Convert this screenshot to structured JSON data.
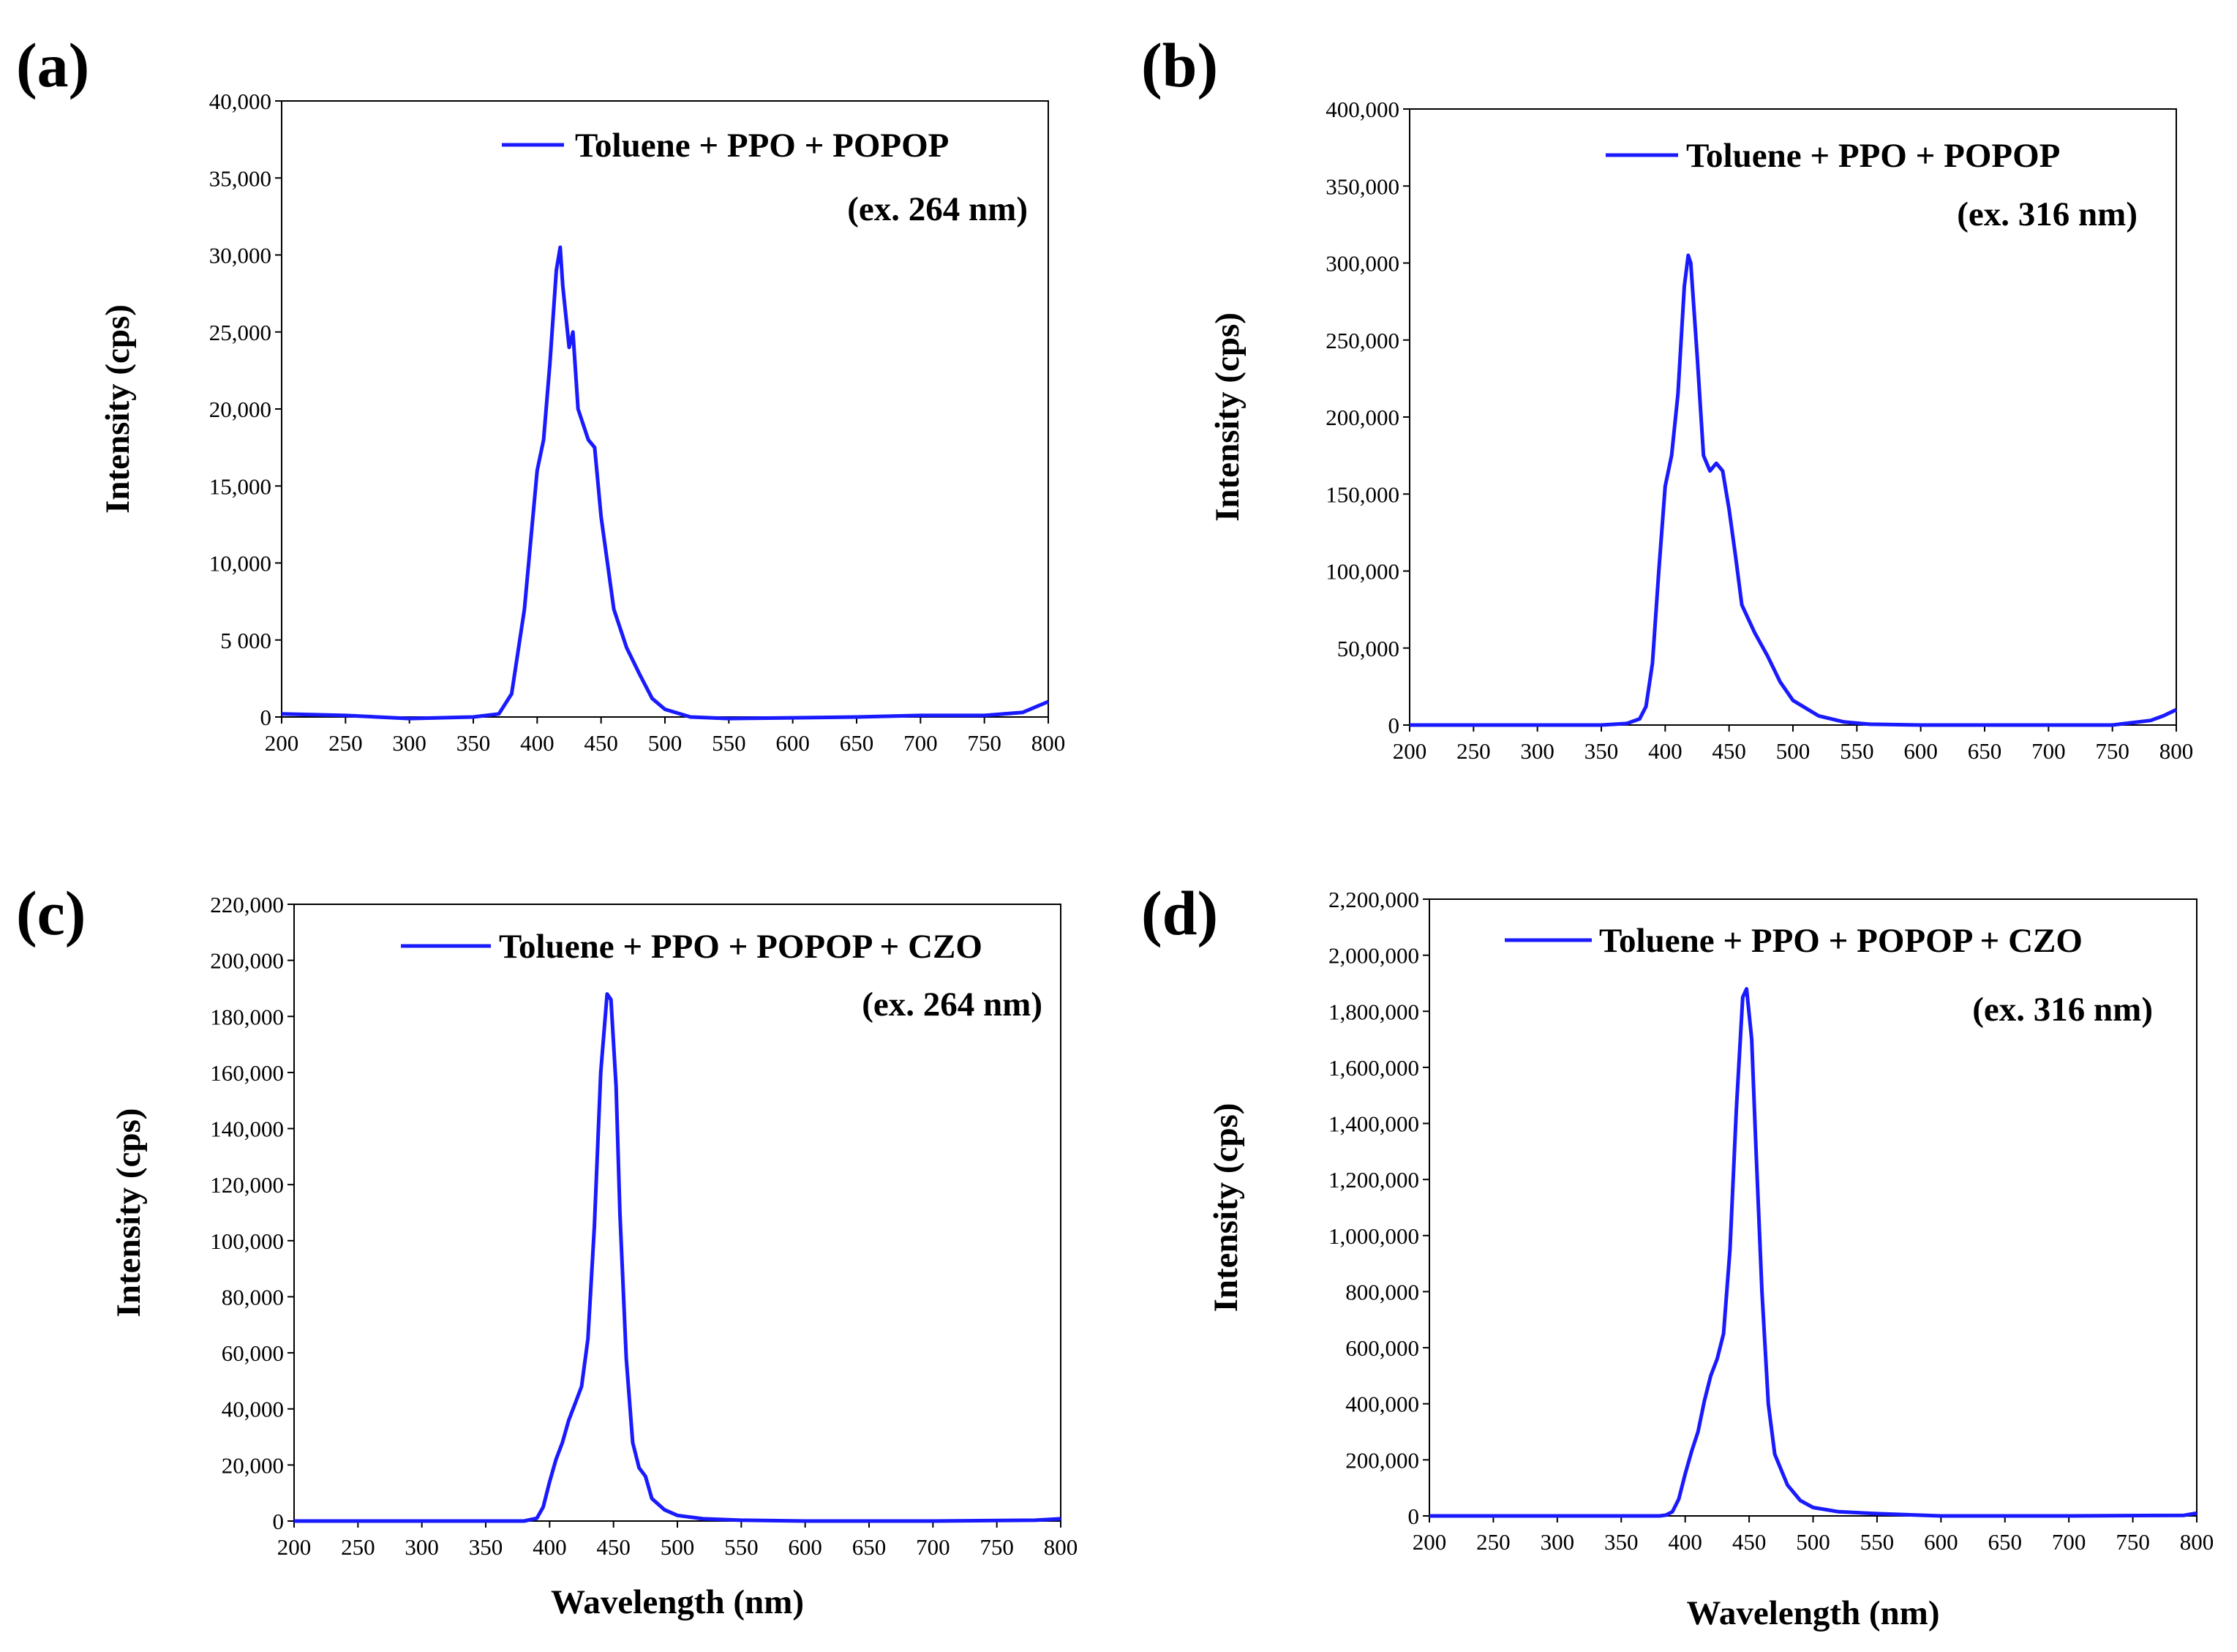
{
  "chart_data": [
    {
      "panel": "(a)",
      "type": "line",
      "xlabel": "",
      "ylabel": "Intensity (cps)",
      "xlim": [
        200,
        800
      ],
      "ylim": [
        0,
        40000
      ],
      "x_ticks": [
        200,
        250,
        300,
        350,
        400,
        450,
        500,
        550,
        600,
        650,
        700,
        750,
        800
      ],
      "x_tick_labels": [
        "200",
        "250",
        "300",
        "350",
        "400",
        "450",
        "500",
        "550",
        "600",
        "650",
        "700",
        "750",
        "800"
      ],
      "y_ticks": [
        0,
        5000,
        10000,
        15000,
        20000,
        25000,
        30000,
        35000,
        40000
      ],
      "y_tick_labels": [
        "0",
        "5 000",
        "10,000",
        "15,000",
        "20,000",
        "25,000",
        "30,000",
        "35,000",
        "40,000"
      ],
      "legend": {
        "label": "Toluene + PPO + POPOP",
        "note": "(ex. 264 nm)",
        "position": "top-right"
      },
      "series": [
        {
          "name": "Toluene + PPO + POPOP",
          "color": "#1a1aff",
          "x": [
            200,
            250,
            300,
            350,
            370,
            380,
            390,
            400,
            405,
            410,
            415,
            418,
            420,
            425,
            428,
            432,
            440,
            445,
            450,
            460,
            470,
            480,
            490,
            500,
            520,
            550,
            600,
            650,
            700,
            750,
            780,
            800
          ],
          "y": [
            200,
            100,
            -100,
            0,
            200,
            1500,
            7000,
            16000,
            18000,
            23000,
            29000,
            30500,
            28000,
            24000,
            25000,
            20000,
            18000,
            17500,
            13000,
            7000,
            4500,
            2800,
            1200,
            500,
            0,
            -100,
            -50,
            0,
            100,
            100,
            300,
            1000
          ]
        }
      ]
    },
    {
      "panel": "(b)",
      "type": "line",
      "xlabel": "",
      "ylabel": "Intensity (cps)",
      "xlim": [
        200,
        800
      ],
      "ylim": [
        0,
        400000
      ],
      "x_ticks": [
        200,
        250,
        300,
        350,
        400,
        450,
        500,
        550,
        600,
        650,
        700,
        750,
        800
      ],
      "x_tick_labels": [
        "200",
        "250",
        "300",
        "350",
        "400",
        "450",
        "500",
        "550",
        "600",
        "650",
        "700",
        "750",
        "800"
      ],
      "y_ticks": [
        0,
        50000,
        100000,
        150000,
        200000,
        250000,
        300000,
        350000,
        400000
      ],
      "y_tick_labels": [
        "0",
        "50,000",
        "100,000",
        "150,000",
        "200,000",
        "250,000",
        "300,000",
        "350,000",
        "400,000"
      ],
      "legend": {
        "label": "Toluene + PPO + POPOP",
        "note": "(ex. 316 nm)",
        "position": "top-right"
      },
      "series": [
        {
          "name": "Toluene + PPO + POPOP",
          "color": "#1a1aff",
          "x": [
            200,
            300,
            350,
            370,
            380,
            385,
            390,
            395,
            400,
            405,
            410,
            415,
            418,
            420,
            425,
            430,
            435,
            440,
            445,
            450,
            455,
            460,
            470,
            480,
            490,
            500,
            520,
            540,
            560,
            600,
            700,
            750,
            780,
            790,
            800
          ],
          "y": [
            0,
            0,
            0,
            1000,
            4000,
            12000,
            40000,
            100000,
            155000,
            175000,
            215000,
            285000,
            305000,
            300000,
            240000,
            175000,
            165000,
            170000,
            165000,
            140000,
            110000,
            78000,
            60000,
            45000,
            28000,
            16000,
            6000,
            2000,
            500,
            0,
            0,
            0,
            3000,
            6000,
            10000
          ]
        }
      ]
    },
    {
      "panel": "(c)",
      "type": "line",
      "xlabel": "Wavelength (nm)",
      "ylabel": "Intensity (cps)",
      "xlim": [
        200,
        800
      ],
      "ylim": [
        0,
        220000
      ],
      "x_ticks": [
        200,
        250,
        300,
        350,
        400,
        450,
        500,
        550,
        600,
        650,
        700,
        750,
        800
      ],
      "x_tick_labels": [
        "200",
        "250",
        "300",
        "350",
        "400",
        "450",
        "500",
        "550",
        "600",
        "650",
        "700",
        "750",
        "800"
      ],
      "y_ticks": [
        0,
        20000,
        40000,
        60000,
        80000,
        100000,
        120000,
        140000,
        160000,
        180000,
        200000,
        220000
      ],
      "y_tick_labels": [
        "0",
        "20,000",
        "40,000",
        "60,000",
        "80,000",
        "100,000",
        "120,000",
        "140,000",
        "160,000",
        "180,000",
        "200,000",
        "220,000"
      ],
      "legend": {
        "label": "Toluene + PPO + POPOP + CZO",
        "note": "(ex. 264 nm)",
        "position": "top-right"
      },
      "series": [
        {
          "name": "Toluene + PPO + POPOP + CZO",
          "color": "#1a1aff",
          "x": [
            200,
            300,
            380,
            390,
            395,
            400,
            405,
            410,
            415,
            420,
            425,
            430,
            435,
            440,
            445,
            448,
            452,
            455,
            460,
            465,
            470,
            475,
            480,
            490,
            500,
            520,
            550,
            600,
            700,
            780,
            800
          ],
          "y": [
            0,
            0,
            0,
            1000,
            5000,
            14000,
            22000,
            28000,
            36000,
            42000,
            48000,
            65000,
            105000,
            160000,
            188000,
            186000,
            155000,
            110000,
            58000,
            28000,
            19000,
            16000,
            8000,
            4000,
            2000,
            800,
            300,
            0,
            0,
            300,
            800
          ]
        }
      ]
    },
    {
      "panel": "(d)",
      "type": "line",
      "xlabel": "Wavelength (nm)",
      "ylabel": "Intensity (cps)",
      "xlim": [
        200,
        800
      ],
      "ylim": [
        0,
        2200000
      ],
      "x_ticks": [
        200,
        250,
        300,
        350,
        400,
        450,
        500,
        550,
        600,
        650,
        700,
        750,
        800
      ],
      "x_tick_labels": [
        "200",
        "250",
        "300",
        "350",
        "400",
        "450",
        "500",
        "550",
        "600",
        "650",
        "700",
        "750",
        "800"
      ],
      "y_ticks": [
        0,
        200000,
        400000,
        600000,
        800000,
        1000000,
        1200000,
        1400000,
        1600000,
        1800000,
        2000000,
        2200000
      ],
      "y_tick_labels": [
        "0",
        "200,000",
        "400,000",
        "600,000",
        "800,000",
        "1,000,000",
        "1,200,000",
        "1,400,000",
        "1,600,000",
        "1,800,000",
        "2,000,000",
        "2,200,000"
      ],
      "legend": {
        "label": "Toluene + PPO + POPOP + CZO",
        "note": "(ex. 316 nm)",
        "position": "top-right"
      },
      "series": [
        {
          "name": "Toluene + PPO + POPOP + CZO",
          "color": "#1a1aff",
          "x": [
            200,
            300,
            380,
            385,
            390,
            395,
            400,
            405,
            410,
            415,
            420,
            425,
            430,
            435,
            440,
            445,
            448,
            452,
            455,
            460,
            465,
            470,
            480,
            490,
            500,
            520,
            550,
            600,
            700,
            790,
            800
          ],
          "y": [
            0,
            0,
            0,
            3000,
            15000,
            60000,
            150000,
            230000,
            300000,
            410000,
            500000,
            560000,
            650000,
            950000,
            1450000,
            1850000,
            1880000,
            1700000,
            1350000,
            800000,
            400000,
            220000,
            110000,
            55000,
            30000,
            15000,
            8000,
            0,
            0,
            2000,
            10000
          ]
        }
      ]
    }
  ]
}
